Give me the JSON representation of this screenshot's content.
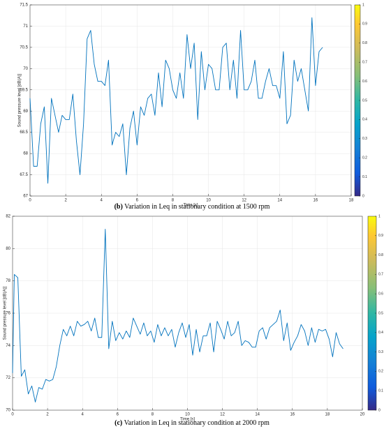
{
  "chart_data": [
    {
      "type": "line",
      "xlabel": "Time [s]",
      "ylabel": "Sound pressure level [dB(A)]",
      "caption_label": "(b)",
      "caption": "Variation in Leq in stationary condition at 1500 rpm",
      "color": "#0072bd",
      "grid": true,
      "x": [
        0,
        0.2,
        0.4,
        0.6,
        0.8,
        1.0,
        1.2,
        1.4,
        1.6,
        1.8,
        2.0,
        2.2,
        2.4,
        2.6,
        2.8,
        3.0,
        3.2,
        3.4,
        3.6,
        3.8,
        4.0,
        4.2,
        4.4,
        4.6,
        4.8,
        5.0,
        5.2,
        5.4,
        5.6,
        5.8,
        6.0,
        6.2,
        6.4,
        6.6,
        6.8,
        7.0,
        7.2,
        7.4,
        7.6,
        7.8,
        8.0,
        8.2,
        8.4,
        8.6,
        8.8,
        9.0,
        9.2,
        9.4,
        9.6,
        9.8,
        10.0,
        10.2,
        10.4,
        10.6,
        10.8,
        11.0,
        11.2,
        11.4,
        11.6,
        11.8,
        12.0,
        12.2,
        12.4,
        12.6,
        12.8,
        13.0,
        13.2,
        13.4,
        13.6,
        13.8,
        14.0,
        14.2,
        14.4,
        14.6,
        14.8,
        15.0,
        15.2,
        15.4,
        15.6,
        15.8,
        16.0,
        16.2,
        16.4
      ],
      "values": [
        69.3,
        67.7,
        67.7,
        68.7,
        69.1,
        67.3,
        69.3,
        68.9,
        68.5,
        68.9,
        68.8,
        68.8,
        69.4,
        68.3,
        67.5,
        68.7,
        70.7,
        70.9,
        70.1,
        69.7,
        69.7,
        69.6,
        70.2,
        68.2,
        68.5,
        68.4,
        68.7,
        67.5,
        68.6,
        69.0,
        68.2,
        69.1,
        68.9,
        69.3,
        69.4,
        68.9,
        69.9,
        69.1,
        70.2,
        70.0,
        69.5,
        69.3,
        69.9,
        69.3,
        70.8,
        70.0,
        70.6,
        68.8,
        70.4,
        69.5,
        70.1,
        70.0,
        69.5,
        69.5,
        70.5,
        70.6,
        69.5,
        70.2,
        69.3,
        70.9,
        69.5,
        69.5,
        69.7,
        70.2,
        69.3,
        69.3,
        69.7,
        70.0,
        69.6,
        69.6,
        69.3,
        70.4,
        68.7,
        68.9,
        70.2,
        69.7,
        70.0,
        69.5,
        69.0,
        71.2,
        69.6,
        70.4,
        70.5
      ],
      "xlim": [
        0,
        18
      ],
      "xticks": [
        0,
        2,
        4,
        6,
        8,
        10,
        12,
        14,
        16,
        18
      ],
      "ylim": [
        67,
        71.5
      ],
      "yticks": [
        67,
        67.5,
        68,
        68.5,
        69,
        69.5,
        70,
        70.5,
        71,
        71.5
      ],
      "clim": [
        0,
        1
      ],
      "cticks": [
        0,
        0.1,
        0.2,
        0.3,
        0.4,
        0.5,
        0.6,
        0.7,
        0.8,
        0.9,
        1
      ]
    },
    {
      "type": "line",
      "xlabel": "Time [s]",
      "ylabel": "Sound pressure level [dB(A)]",
      "caption_label": "(c)",
      "caption": "Variation in Leq in stationary condition at 2000 rpm",
      "color": "#0072bd",
      "grid": true,
      "x": [
        0,
        0.1,
        0.3,
        0.5,
        0.7,
        0.9,
        1.1,
        1.3,
        1.5,
        1.7,
        1.9,
        2.1,
        2.3,
        2.5,
        2.7,
        2.9,
        3.1,
        3.3,
        3.5,
        3.7,
        3.9,
        4.1,
        4.3,
        4.5,
        4.7,
        4.9,
        5.1,
        5.3,
        5.5,
        5.7,
        5.9,
        6.1,
        6.3,
        6.5,
        6.7,
        6.9,
        7.1,
        7.3,
        7.5,
        7.7,
        7.9,
        8.1,
        8.3,
        8.5,
        8.7,
        8.9,
        9.1,
        9.3,
        9.5,
        9.7,
        9.9,
        10.1,
        10.3,
        10.5,
        10.7,
        10.9,
        11.1,
        11.3,
        11.5,
        11.7,
        11.9,
        12.1,
        12.3,
        12.5,
        12.7,
        12.9,
        13.1,
        13.3,
        13.5,
        13.7,
        13.9,
        14.1,
        14.3,
        14.5,
        14.7,
        14.9,
        15.1,
        15.3,
        15.5,
        15.7,
        15.9,
        16.1,
        16.3,
        16.5,
        16.7,
        16.9,
        17.1,
        17.3,
        17.5,
        17.7,
        17.9,
        18.1,
        18.3,
        18.5,
        18.7,
        18.9
      ],
      "values": [
        72.3,
        78.4,
        78.2,
        72.1,
        72.5,
        71.0,
        71.5,
        70.5,
        71.4,
        71.3,
        71.9,
        71.8,
        71.9,
        72.7,
        74.0,
        75.0,
        74.6,
        75.2,
        74.6,
        75.5,
        75.2,
        75.3,
        75.5,
        74.9,
        75.7,
        74.5,
        74.5,
        81.2,
        73.8,
        75.5,
        74.3,
        74.8,
        74.4,
        74.9,
        74.5,
        75.7,
        75.2,
        74.7,
        75.4,
        74.6,
        74.9,
        74.2,
        75.3,
        74.6,
        75.1,
        74.6,
        75.0,
        73.9,
        74.8,
        75.4,
        74.5,
        75.3,
        73.4,
        75.0,
        73.6,
        74.6,
        74.6,
        75.4,
        73.6,
        75.5,
        75.0,
        74.4,
        75.5,
        74.6,
        74.8,
        75.5,
        74.0,
        74.3,
        74.2,
        73.9,
        73.9,
        74.9,
        75.1,
        74.4,
        75.1,
        75.3,
        75.5,
        76.2,
        74.3,
        75.4,
        73.7,
        74.2,
        74.6,
        75.3,
        74.9,
        74.0,
        75.1,
        74.2,
        75.0,
        74.9,
        75.0,
        74.4,
        73.3,
        74.8,
        74.1,
        73.8
      ],
      "xlim": [
        0,
        20
      ],
      "xticks": [
        0,
        2,
        4,
        6,
        8,
        10,
        12,
        14,
        16,
        18,
        20
      ],
      "ylim": [
        70,
        82
      ],
      "yticks": [
        70,
        72,
        74,
        76,
        78,
        80,
        82
      ],
      "clim": [
        0,
        1
      ],
      "cticks": [
        0,
        0.1,
        0.2,
        0.3,
        0.4,
        0.5,
        0.6,
        0.7,
        0.8,
        0.9,
        1
      ]
    }
  ]
}
